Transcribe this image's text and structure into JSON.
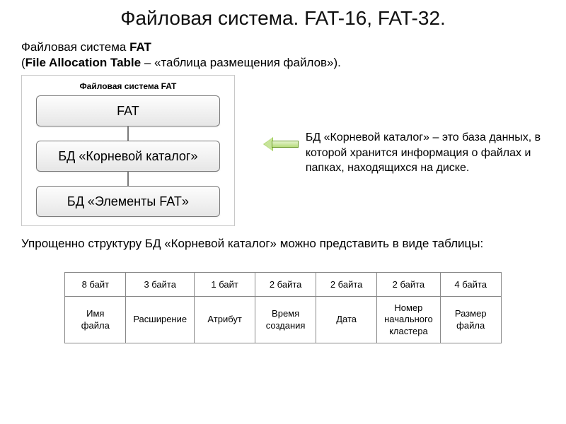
{
  "title": "Файловая система. FAT-16, FAT-32.",
  "intro": {
    "line1_prefix": "Файловая система ",
    "line1_bold": "FAT",
    "line2_open": "(",
    "line2_bold": "File Allocation Table",
    "line2_rest": " – «таблица размещения файлов»)."
  },
  "diagram": {
    "title": "Файловая система FAT",
    "nodes": [
      "FAT",
      "БД «Корневой каталог»",
      "БД «Элементы FAT»"
    ],
    "node_bg_gradient": [
      "#fdfdfd",
      "#f3f3f3",
      "#e6e6e6"
    ],
    "node_border": "#7a7a7a",
    "frame_border": "#c8c8c8"
  },
  "side_text": "БД «Корневой каталог» – это база данных, в которой хранится информация о файлах и папках, находящихся на диске.",
  "arrow": {
    "fill_light": "#c7e49a",
    "fill_dark": "#9ccb52",
    "border": "#6b9a2b"
  },
  "below_text": "Упрощенно структуру БД «Корневой каталог» можно представить в виде таблицы:",
  "table": {
    "row1": [
      "8 байт",
      "3 байта",
      "1 байт",
      "2 байта",
      "2 байта",
      "2 байта",
      "4 байта"
    ],
    "row2": [
      "Имя файла",
      "Расширение",
      "Атрибут",
      "Время создания",
      "Дата",
      "Номер начального кластера",
      "Размер файла"
    ],
    "border_color": "#888888"
  },
  "colors": {
    "background": "#ffffff",
    "text": "#000000"
  }
}
